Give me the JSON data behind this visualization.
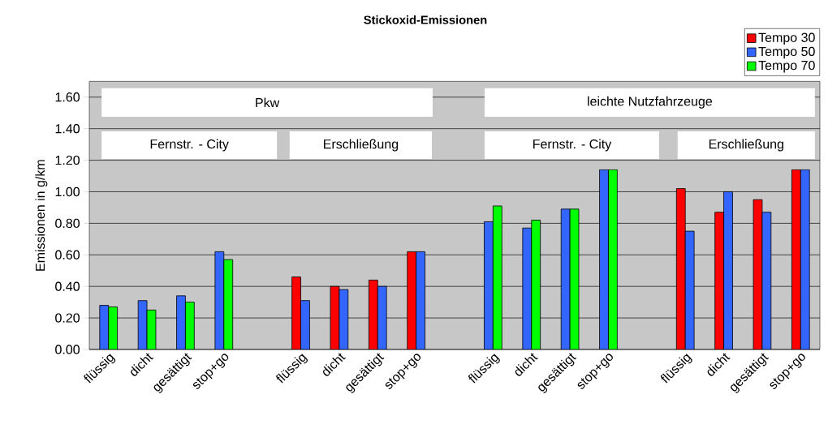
{
  "chart_data": {
    "type": "bar",
    "title": "Stickoxid-Emissionen",
    "ylabel": "Emissionen in g/km",
    "categories": [
      "flüssig",
      "dicht",
      "gesättigt",
      "stop+go",
      null,
      "flüssig",
      "dicht",
      "gesättigt",
      "stop+go",
      null,
      "flüssig",
      "dicht",
      "gesättigt",
      "stop+go",
      null,
      "flüssig",
      "dicht",
      "gesättigt",
      "stop+go"
    ],
    "series": [
      {
        "name": "Tempo 30",
        "color": "#ff0000",
        "values": [
          null,
          null,
          null,
          null,
          null,
          0.46,
          0.4,
          0.44,
          0.62,
          null,
          null,
          null,
          null,
          null,
          null,
          1.02,
          0.87,
          0.95,
          1.14
        ]
      },
      {
        "name": "Tempo 50",
        "color": "#3366ff",
        "values": [
          0.28,
          0.31,
          0.34,
          0.62,
          null,
          0.31,
          0.38,
          0.4,
          0.62,
          null,
          0.81,
          0.77,
          0.89,
          1.14,
          null,
          0.75,
          1.0,
          0.87,
          1.14
        ]
      },
      {
        "name": "Tempo 70",
        "color": "#00ff00",
        "values": [
          0.27,
          0.25,
          0.3,
          0.57,
          null,
          null,
          null,
          null,
          null,
          null,
          0.91,
          0.82,
          0.89,
          1.14,
          null,
          null,
          null,
          null,
          null
        ]
      }
    ],
    "ylim": [
      0,
      1.7
    ],
    "yticks": [
      {
        "value": 0,
        "label": "0.00"
      },
      {
        "value": 0.2,
        "label": "0.20"
      },
      {
        "value": 0.4,
        "label": "0.40"
      },
      {
        "value": 0.6,
        "label": "0.60"
      },
      {
        "value": 0.8,
        "label": "0.80"
      },
      {
        "value": 1.0,
        "label": "1.00"
      },
      {
        "value": 1.2,
        "label": "1.20"
      },
      {
        "value": 1.4,
        "label": "1.40"
      },
      {
        "value": 1.6,
        "label": "1.60"
      }
    ],
    "grid": "y",
    "legend": "top right",
    "annotations": [
      "Pkw",
      "leichte Nutzfahrzeuge",
      "Fernstr. - City",
      "Erschließung",
      "Fernstr. - City",
      "Erschließung"
    ]
  }
}
